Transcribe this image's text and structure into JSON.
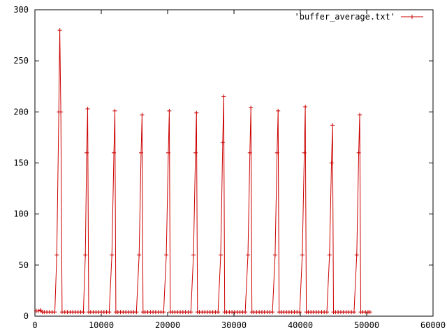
{
  "chart_data": {
    "type": "line",
    "title": "",
    "xlabel": "",
    "ylabel": "",
    "xlim": [
      0,
      60000
    ],
    "ylim": [
      0,
      300
    ],
    "x_ticks": [
      0,
      10000,
      20000,
      30000,
      40000,
      50000,
      60000
    ],
    "y_ticks": [
      0,
      50,
      100,
      150,
      200,
      250,
      300
    ],
    "x_tick_labels": [
      "0",
      "10000",
      "20000",
      "30000",
      "40000",
      "50000",
      "60000"
    ],
    "y_tick_labels": [
      "0",
      "50",
      "100",
      "150",
      "200",
      "250",
      "300"
    ],
    "grid": false,
    "legend_position": "top-right",
    "series": [
      {
        "name": "'buffer_average.txt'",
        "color": "#cc0000",
        "marker": "plus",
        "x": [
          200,
          500,
          800,
          1100,
          1400,
          1800,
          2200,
          2600,
          3000,
          3300,
          3600,
          3750,
          3900,
          4100,
          4500,
          4900,
          5300,
          5700,
          6100,
          6500,
          6900,
          7300,
          7600,
          7800,
          7950,
          8100,
          8400,
          8800,
          9200,
          9600,
          10000,
          10400,
          10800,
          11200,
          11600,
          11900,
          12050,
          12200,
          12500,
          12900,
          13300,
          13700,
          14100,
          14500,
          14900,
          15300,
          15700,
          16000,
          16150,
          16300,
          16600,
          17000,
          17400,
          17800,
          18200,
          18600,
          19000,
          19400,
          19800,
          20100,
          20250,
          20400,
          20700,
          21100,
          21500,
          21900,
          22300,
          22700,
          23100,
          23500,
          23900,
          24200,
          24350,
          24500,
          24800,
          25200,
          25600,
          26000,
          26400,
          26800,
          27200,
          27600,
          28000,
          28300,
          28450,
          28600,
          28900,
          29300,
          29700,
          30100,
          30500,
          30900,
          31300,
          31700,
          32100,
          32400,
          32550,
          32700,
          33000,
          33400,
          33800,
          34200,
          34600,
          35000,
          35400,
          35800,
          36200,
          36500,
          36650,
          36800,
          37100,
          37500,
          37900,
          38300,
          38700,
          39100,
          39500,
          39900,
          40300,
          40600,
          40750,
          40900,
          41200,
          41600,
          42000,
          42400,
          42800,
          43200,
          43600,
          44000,
          44400,
          44700,
          44850,
          45000,
          45300,
          45700,
          46100,
          46500,
          46900,
          47300,
          47700,
          48100,
          48500,
          48800,
          48950,
          49100,
          49400,
          49800,
          50200,
          50500
        ],
        "y": [
          5,
          5,
          6,
          4,
          4,
          4,
          4,
          4,
          4,
          60,
          200,
          280,
          200,
          4,
          4,
          4,
          4,
          4,
          4,
          4,
          4,
          4,
          60,
          160,
          203,
          4,
          4,
          4,
          4,
          4,
          4,
          4,
          4,
          4,
          60,
          160,
          201,
          4,
          4,
          4,
          4,
          4,
          4,
          4,
          4,
          4,
          60,
          160,
          197,
          4,
          4,
          4,
          4,
          4,
          4,
          4,
          4,
          4,
          60,
          160,
          201,
          4,
          4,
          4,
          4,
          4,
          4,
          4,
          4,
          4,
          60,
          160,
          199,
          4,
          4,
          4,
          4,
          4,
          4,
          4,
          4,
          4,
          60,
          170,
          215,
          4,
          4,
          4,
          4,
          4,
          4,
          4,
          4,
          4,
          60,
          160,
          204,
          4,
          4,
          4,
          4,
          4,
          4,
          4,
          4,
          4,
          60,
          160,
          201,
          4,
          4,
          4,
          4,
          4,
          4,
          4,
          4,
          4,
          60,
          160,
          205,
          4,
          4,
          4,
          4,
          4,
          4,
          4,
          4,
          4,
          60,
          150,
          187,
          4,
          4,
          4,
          4,
          4,
          4,
          4,
          4,
          4,
          60,
          160,
          197,
          4,
          4,
          4,
          4,
          4
        ]
      }
    ]
  }
}
